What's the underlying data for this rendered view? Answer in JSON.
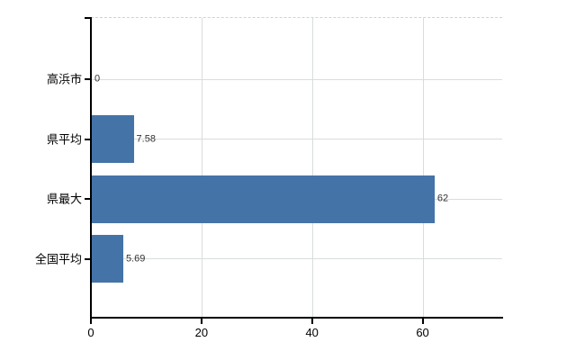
{
  "chart_data": {
    "type": "bar",
    "orientation": "horizontal",
    "categories": [
      "高浜市",
      "県平均",
      "県最大",
      "全国平均"
    ],
    "values": [
      0,
      7.58,
      62,
      5.69
    ],
    "value_labels": [
      "0",
      "7.58",
      "62",
      "5.69"
    ],
    "xticks": [
      0,
      20,
      40,
      60
    ],
    "xtick_labels": [
      "0",
      "20",
      "40",
      "60"
    ],
    "xlim": [
      0,
      74.4
    ],
    "grid": true,
    "legend": "none",
    "bar_color": "#4473a8",
    "grid_color": "#d9ddd9",
    "axis_color": "#000000",
    "background_color": "#ffffff"
  }
}
